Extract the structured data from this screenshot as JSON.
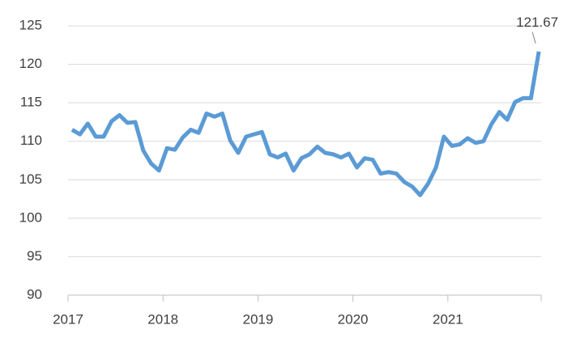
{
  "chart_data": {
    "type": "line",
    "x": [
      2017.042,
      2017.125,
      2017.208,
      2017.292,
      2017.375,
      2017.458,
      2017.542,
      2017.625,
      2017.708,
      2017.792,
      2017.875,
      2017.958,
      2018.042,
      2018.125,
      2018.208,
      2018.292,
      2018.375,
      2018.458,
      2018.542,
      2018.625,
      2018.708,
      2018.792,
      2018.875,
      2018.958,
      2019.042,
      2019.125,
      2019.208,
      2019.292,
      2019.375,
      2019.458,
      2019.542,
      2019.625,
      2019.708,
      2019.792,
      2019.875,
      2019.958,
      2020.042,
      2020.125,
      2020.208,
      2020.292,
      2020.375,
      2020.458,
      2020.542,
      2020.625,
      2020.708,
      2020.792,
      2020.875,
      2020.958,
      2021.042,
      2021.125,
      2021.208,
      2021.292,
      2021.375,
      2021.458,
      2021.542,
      2021.625,
      2021.708,
      2021.792,
      2021.875,
      2021.958
    ],
    "series": [
      {
        "color": "#5b9bd5",
        "values": [
          111.5,
          110.9,
          112.3,
          110.6,
          110.6,
          112.6,
          113.4,
          112.4,
          112.5,
          108.8,
          107.1,
          106.2,
          109.1,
          108.9,
          110.5,
          111.5,
          111.1,
          113.6,
          113.2,
          113.6,
          110.1,
          108.5,
          110.6,
          110.9,
          111.2,
          108.3,
          107.9,
          108.4,
          106.2,
          107.8,
          108.3,
          109.3,
          108.5,
          108.3,
          107.9,
          108.4,
          106.6,
          107.8,
          107.6,
          105.8,
          106.0,
          105.8,
          104.7,
          104.1,
          103.0,
          104.5,
          106.6,
          110.6,
          109.4,
          109.6,
          110.4,
          109.8,
          110.0,
          112.2,
          113.8,
          112.8,
          115.1,
          115.6,
          115.6,
          121.67
        ]
      }
    ],
    "labeled_point": 59,
    "xlim": [
      2017,
      2022
    ],
    "xticks": [
      2017,
      2018,
      2019,
      2020,
      2021
    ],
    "ylim": [
      90,
      125
    ],
    "yticks": [
      90,
      95,
      100,
      105,
      110,
      115,
      120,
      125
    ],
    "grid": true
  }
}
